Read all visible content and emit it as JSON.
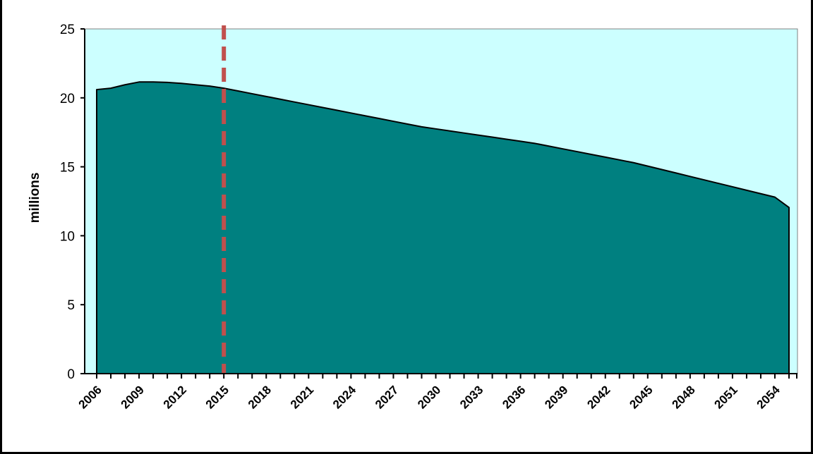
{
  "chart_data": {
    "type": "area",
    "title": "",
    "xlabel": "",
    "ylabel": "millions",
    "ylim": [
      0,
      25
    ],
    "yticks": [
      "0",
      "5",
      "10",
      "15",
      "20",
      "25"
    ],
    "xticks": [
      "2006",
      "2009",
      "2012",
      "2015",
      "2018",
      "2021",
      "2024",
      "2027",
      "2030",
      "2033",
      "2036",
      "2039",
      "2042",
      "2045",
      "2048",
      "2051",
      "2054"
    ],
    "x": [
      2006,
      2007,
      2008,
      2009,
      2010,
      2011,
      2012,
      2013,
      2014,
      2015,
      2016,
      2017,
      2018,
      2019,
      2020,
      2021,
      2022,
      2023,
      2024,
      2025,
      2026,
      2027,
      2028,
      2029,
      2030,
      2031,
      2032,
      2033,
      2034,
      2035,
      2036,
      2037,
      2038,
      2039,
      2040,
      2041,
      2042,
      2043,
      2044,
      2045,
      2046,
      2047,
      2048,
      2049,
      2050,
      2051,
      2052,
      2053,
      2054,
      2055
    ],
    "values": [
      20.6,
      20.7,
      20.95,
      21.15,
      21.15,
      21.12,
      21.05,
      20.95,
      20.85,
      20.7,
      20.5,
      20.3,
      20.1,
      19.9,
      19.7,
      19.5,
      19.3,
      19.1,
      18.9,
      18.7,
      18.5,
      18.3,
      18.1,
      17.9,
      17.75,
      17.6,
      17.45,
      17.3,
      17.15,
      17.0,
      16.85,
      16.7,
      16.5,
      16.3,
      16.1,
      15.9,
      15.7,
      15.5,
      15.3,
      15.05,
      14.8,
      14.55,
      14.3,
      14.05,
      13.8,
      13.55,
      13.3,
      13.05,
      12.8,
      12.05
    ],
    "marker_line": {
      "x": 2015,
      "style": "dashed",
      "color": "#c0504d"
    },
    "grid": false,
    "legend": "none",
    "colors": {
      "area": "#008080",
      "plot_background": "#ccffff",
      "marker_line": "#c0504d"
    }
  }
}
